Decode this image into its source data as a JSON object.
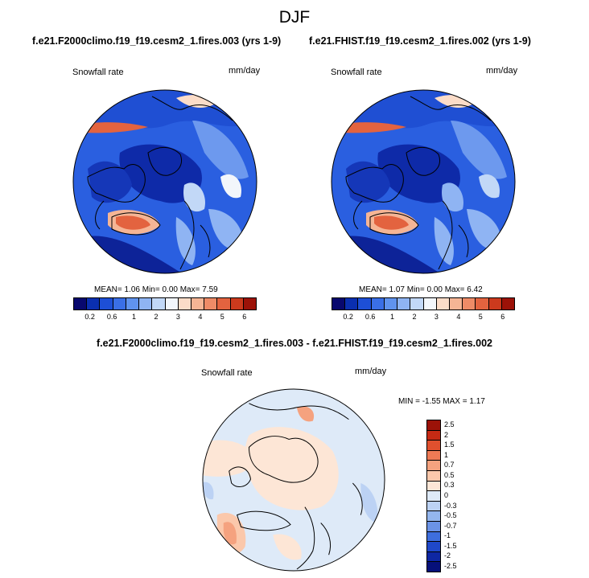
{
  "season": "DJF",
  "panels": {
    "left": {
      "title": "f.e21.F2000climo.f19_f19.cesm2_1.fires.003 (yrs 1-9)",
      "variable": "Snowfall rate",
      "units": "mm/day",
      "stats": "MEAN=  1.06  Min=  0.00  Max=  7.59"
    },
    "right": {
      "title": "f.e21.FHIST.f19_f19.cesm2_1.fires.002 (yrs 1-9)",
      "variable": "Snowfall rate",
      "units": "mm/day",
      "stats": "MEAN=  1.07  Min=  0.00  Max=  6.42"
    },
    "diff": {
      "title": "f.e21.F2000climo.f19_f19.cesm2_1.fires.003 - f.e21.FHIST.f19_f19.cesm2_1.fires.002",
      "variable": "Snowfall rate",
      "units": "mm/day",
      "stats": "MIN =  -1.55 MAX =   1.17"
    }
  },
  "colorbar_top": {
    "colors": [
      "#08086e",
      "#0a2fb0",
      "#1d4fd6",
      "#3a6fe6",
      "#6093ee",
      "#8fb4f3",
      "#c2d8f7",
      "#f2f6fb",
      "#fbdcc8",
      "#f5b595",
      "#ee8b67",
      "#e3633f",
      "#cc3a1d",
      "#9c1208"
    ],
    "tick_labels": [
      "0.2",
      "0.6",
      "1",
      "2",
      "3",
      "4",
      "5",
      "6"
    ]
  },
  "colorbar_diff": {
    "colors": [
      "#9c1208",
      "#c62a14",
      "#e0502e",
      "#ee7a55",
      "#f5a27f",
      "#fbc8ab",
      "#fde6d6",
      "#deeaf8",
      "#bcd2f4",
      "#94b6ee",
      "#6b93e6",
      "#3e6edd",
      "#1f48c9",
      "#0e27a3",
      "#06107a"
    ],
    "tick_labels": [
      "2.5",
      "2",
      "1.5",
      "1",
      "0.7",
      "0.5",
      "0.3",
      "0",
      "-0.3",
      "-0.5",
      "-0.7",
      "-1",
      "-1.5",
      "-2",
      "-2.5"
    ]
  }
}
